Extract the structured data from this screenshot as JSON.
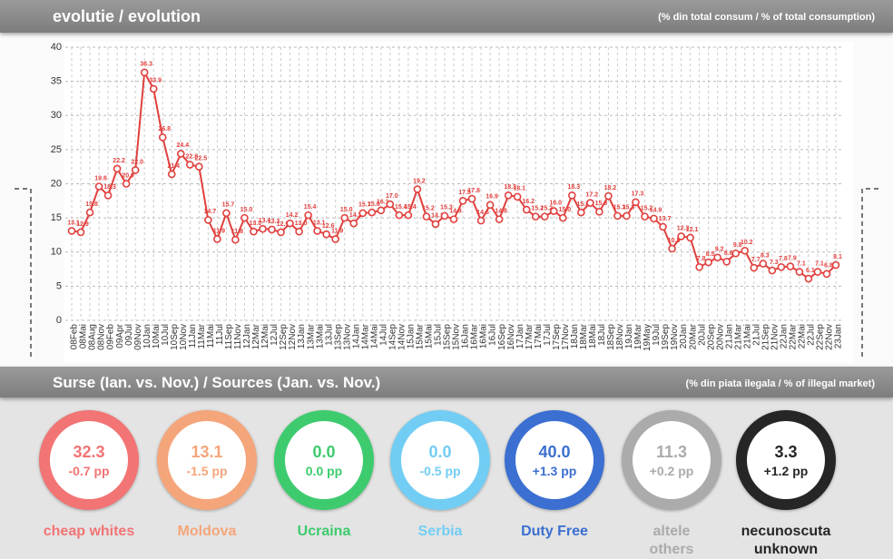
{
  "header": {
    "title": "evolutie / evolution",
    "subtitle": "(% din total consum / % of total consumption)"
  },
  "chart_data": {
    "type": "line",
    "color": "#e0403e",
    "grid": true,
    "categories": [
      "08Feb",
      "08Mai",
      "08Aug",
      "08Nov",
      "09Feb",
      "09Apr",
      "09Jul",
      "09Nov",
      "10Jan",
      "10Mai",
      "10Jul",
      "10Sep",
      "10Nov",
      "11Jan",
      "11Mar",
      "11Mai",
      "11Jul",
      "11Sep",
      "11Nov",
      "12Jan",
      "12Mar",
      "12Mai",
      "12Jul",
      "12Sep",
      "12Nov",
      "13Jan",
      "13Mar",
      "13Mai",
      "13Jul",
      "13Sep",
      "13Nov",
      "14Jan",
      "14Mar",
      "14Mai",
      "14Jul",
      "14Sep",
      "14Nov",
      "15Jan",
      "15Mar",
      "15Mai",
      "15Jul",
      "15Sep",
      "15Nov",
      "16Jan",
      "16Mar",
      "16Mai",
      "16Jul",
      "16Sep",
      "16Nov",
      "17Jan",
      "17Mar",
      "17Mai",
      "17Jul",
      "17Sep",
      "17Nov",
      "18Jan",
      "18Mar",
      "18Mai",
      "18Jul",
      "18Sep",
      "18Nov",
      "19Jan",
      "19Mar",
      "19May",
      "19Jul",
      "19Sep",
      "19Nov",
      "20Jan",
      "20Mar",
      "20Jul",
      "20Sep",
      "20Nov",
      "21Jan",
      "21Mar",
      "21Mai",
      "21Jul",
      "21Sep",
      "21Nov",
      "22Jan",
      "22Mar",
      "22Mai",
      "22Jul",
      "22Sep",
      "22Nov",
      "23Jan"
    ],
    "values": [
      13.1,
      12.9,
      15.8,
      19.6,
      18.3,
      22.2,
      20.0,
      22.0,
      36.3,
      33.9,
      26.8,
      21.4,
      24.4,
      22.8,
      22.5,
      14.7,
      11.9,
      15.7,
      11.8,
      15.0,
      13.0,
      13.4,
      13.3,
      12.9,
      14.2,
      13.0,
      15.4,
      13.1,
      12.6,
      11.9,
      15.0,
      14.2,
      15.7,
      15.8,
      16.1,
      17.0,
      15.4,
      15.4,
      19.2,
      15.2,
      14.1,
      15.3,
      14.8,
      17.5,
      17.8,
      14.6,
      16.9,
      14.8,
      18.3,
      18.1,
      16.2,
      15.2,
      15.2,
      16.0,
      15.0,
      18.3,
      15.8,
      17.2,
      15.9,
      18.2,
      15.3,
      15.3,
      17.3,
      15.2,
      14.9,
      13.7,
      10.5,
      12.3,
      12.1,
      7.8,
      8.5,
      9.2,
      8.6,
      9.8,
      10.2,
      7.7,
      8.3,
      7.3,
      7.8,
      7.9,
      7.1,
      6.1,
      7.1,
      6.8,
      8.1
    ],
    "value_labels": [
      "13.1",
      "12.9",
      "15.8",
      "19.6",
      "18.3",
      "22.2",
      "20.0",
      "22.0",
      "36.3",
      "33.9",
      "26.8",
      "21.4",
      "24.4",
      "22.8",
      "22.5",
      "14.7",
      "11.9",
      "15.7",
      "11.8",
      "15.0",
      "13.0",
      "13.4",
      "13.3",
      "12.9",
      "14.2",
      "13.0",
      "15.4",
      "13.1",
      "12.6",
      "11.9",
      "15.0",
      "14.2",
      "15.7",
      "15.8",
      "16.1",
      "17.0",
      "15.4",
      "15.4",
      "19.2",
      "15.2",
      "14.1",
      "15.3",
      "14.8",
      "17.5",
      "17.8",
      "14.6",
      "16.9",
      "14.8",
      "18.3",
      "18.1",
      "16.2",
      "15.2",
      "15.2",
      "16.0",
      "15.0",
      "18.3",
      "15.8",
      "17.2",
      "15.9",
      "18.2",
      "15.3",
      "15.3",
      "17.3",
      "15.2",
      "14.9",
      "13.7",
      "10.5",
      "12.3",
      "12.1",
      "7.8",
      "8.5",
      "9.2",
      "8.6",
      "9.8",
      "10.2",
      "7.7",
      "8.3",
      "7.3",
      "7.8",
      "7.9",
      "7.1",
      "6.1",
      "7.1",
      "6.8",
      "8.1"
    ],
    "ylim": [
      0,
      40
    ],
    "yticks": [
      0,
      5,
      10,
      15,
      20,
      25,
      30,
      35,
      40
    ]
  },
  "sources": {
    "title": "Surse (Ian. vs. Nov.) / Sources (Jan. vs. Nov.)",
    "subtitle": "(% din piata ilegala / % of illegal market)",
    "items": [
      {
        "name": "cheap whites",
        "value": "32.3",
        "change": "-0.7 pp",
        "color": "#f27474"
      },
      {
        "name": "Moldova",
        "value": "13.1",
        "change": "-1.5 pp",
        "color": "#f5a57a"
      },
      {
        "name": "Ucraina",
        "value": "0.0",
        "change": "0.0 pp",
        "color": "#3dcb6e"
      },
      {
        "name": "Serbia",
        "value": "0.0",
        "change": "-0.5 pp",
        "color": "#72cdf4"
      },
      {
        "name": "Duty Free",
        "value": "40.0",
        "change": "+1.3 pp",
        "color": "#3b6fd1"
      },
      {
        "name": "altele\nothers",
        "value": "11.3",
        "change": "+0.2 pp",
        "color": "#ababab"
      },
      {
        "name": "necunoscuta\nunknown",
        "value": "3.3",
        "change": "+1.2 pp",
        "color": "#262626"
      }
    ]
  }
}
